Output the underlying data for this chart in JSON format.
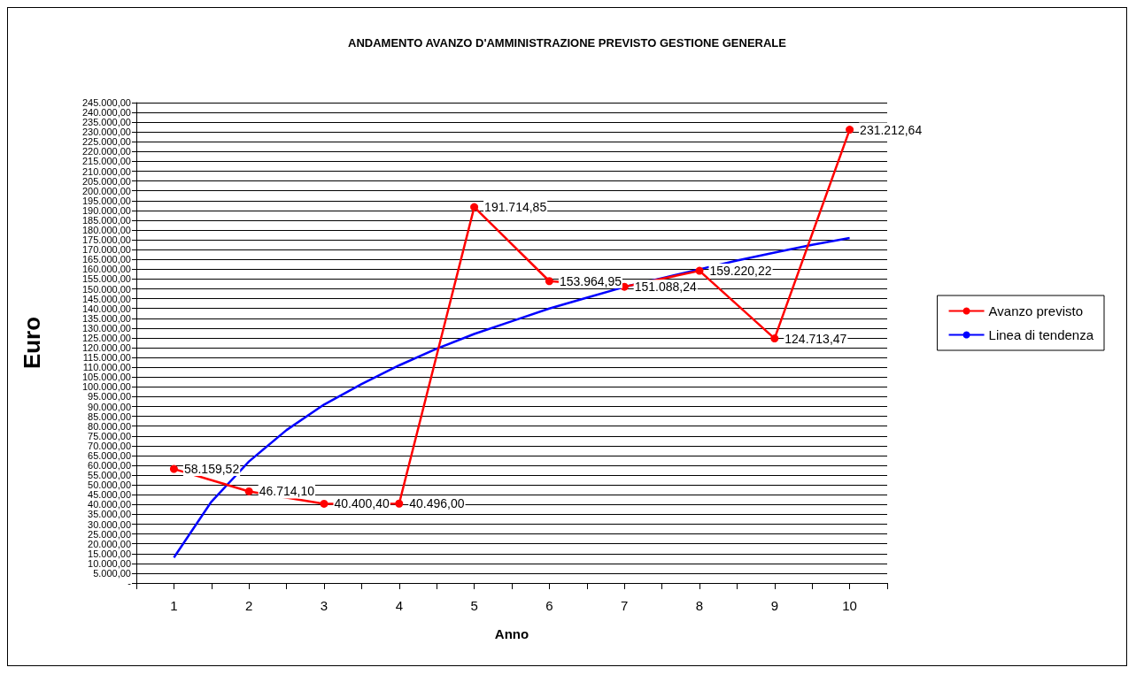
{
  "chart_data": {
    "type": "line",
    "title": "ANDAMENTO AVANZO D'AMMINISTRAZIONE PREVISTO GESTIONE GENERALE",
    "xlabel": "Anno",
    "ylabel": "Euro",
    "x": [
      1,
      2,
      3,
      4,
      5,
      6,
      7,
      8,
      9,
      10
    ],
    "xlim": [
      0.5,
      10.5
    ],
    "xticks": [
      {
        "value": 0.5,
        "label": null
      },
      1,
      {
        "value": 1.5,
        "label": null
      },
      2,
      {
        "value": 2.5,
        "label": null
      },
      3,
      {
        "value": 3.5,
        "label": null
      },
      4,
      {
        "value": 4.5,
        "label": null
      },
      5,
      {
        "value": 5.5,
        "label": null
      },
      6,
      {
        "value": 6.5,
        "label": null
      },
      7,
      {
        "value": 7.5,
        "label": null
      },
      8,
      {
        "value": 8.5,
        "label": null
      },
      9,
      {
        "value": 9.5,
        "label": null
      },
      10,
      {
        "value": 10.5,
        "label": null
      }
    ],
    "ylim": [
      0,
      245000
    ],
    "yticks": [
      {
        "value": 0,
        "label": "-"
      },
      {
        "value": 5000,
        "label": "5.000,00"
      },
      {
        "value": 10000,
        "label": "10.000,00"
      },
      {
        "value": 15000,
        "label": "15.000,00"
      },
      {
        "value": 20000,
        "label": "20.000,00"
      },
      {
        "value": 25000,
        "label": "25.000,00"
      },
      {
        "value": 30000,
        "label": "30.000,00"
      },
      {
        "value": 35000,
        "label": "35.000,00"
      },
      {
        "value": 40000,
        "label": "40.000,00"
      },
      {
        "value": 45000,
        "label": "45.000,00"
      },
      {
        "value": 50000,
        "label": "50.000,00"
      },
      {
        "value": 55000,
        "label": "55.000,00"
      },
      {
        "value": 60000,
        "label": "60.000,00"
      },
      {
        "value": 65000,
        "label": "65.000,00"
      },
      {
        "value": 70000,
        "label": "70.000,00"
      },
      {
        "value": 75000,
        "label": "75.000,00"
      },
      {
        "value": 80000,
        "label": "80.000,00"
      },
      {
        "value": 85000,
        "label": "85.000,00"
      },
      {
        "value": 90000,
        "label": "90.000,00"
      },
      {
        "value": 95000,
        "label": "95.000,00"
      },
      {
        "value": 100000,
        "label": "100.000,00"
      },
      {
        "value": 105000,
        "label": "105.000,00"
      },
      {
        "value": 110000,
        "label": "110.000,00"
      },
      {
        "value": 115000,
        "label": "115.000,00"
      },
      {
        "value": 120000,
        "label": "120.000,00"
      },
      {
        "value": 125000,
        "label": "125.000,00"
      },
      {
        "value": 130000,
        "label": "130.000,00"
      },
      {
        "value": 135000,
        "label": "135.000,00"
      },
      {
        "value": 140000,
        "label": "140.000,00"
      },
      {
        "value": 145000,
        "label": "145.000,00"
      },
      {
        "value": 150000,
        "label": "150.000,00"
      },
      {
        "value": 155000,
        "label": "155.000,00"
      },
      {
        "value": 160000,
        "label": "160.000,00"
      },
      {
        "value": 165000,
        "label": "165.000,00"
      },
      {
        "value": 170000,
        "label": "170.000,00"
      },
      {
        "value": 175000,
        "label": "175.000,00"
      },
      {
        "value": 180000,
        "label": "180.000,00"
      },
      {
        "value": 185000,
        "label": "185.000,00"
      },
      {
        "value": 190000,
        "label": "190.000,00"
      },
      {
        "value": 195000,
        "label": "195.000,00"
      },
      {
        "value": 200000,
        "label": "200.000,00"
      },
      {
        "value": 205000,
        "label": "205.000,00"
      },
      {
        "value": 210000,
        "label": "210.000,00"
      },
      {
        "value": 215000,
        "label": "215.000,00"
      },
      {
        "value": 220000,
        "label": "220.000,00"
      },
      {
        "value": 225000,
        "label": "225.000,00"
      },
      {
        "value": 230000,
        "label": "230.000,00"
      },
      {
        "value": 235000,
        "label": "235.000,00"
      },
      {
        "value": 240000,
        "label": "240.000,00"
      },
      {
        "value": 245000,
        "label": "245.000,00"
      }
    ],
    "grid": "y",
    "legend": "right",
    "series": [
      {
        "name": "Avanzo previsto",
        "color": "#ff0000",
        "marker": "circle",
        "values": [
          58159.52,
          46714.1,
          40400.4,
          40496.0,
          191714.85,
          153964.95,
          151088.24,
          159220.22,
          124713.47,
          231212.64
        ],
        "value_labels": [
          "58.159,52",
          "46.714,10",
          "40.400,40",
          "40.496,00",
          "191.714,85",
          "153.964,95",
          "151.088,24",
          "159.220,22",
          "124.713,47",
          "231.212,64"
        ]
      },
      {
        "name": "Linea di tendenza",
        "color": "#0000ff",
        "marker": "none",
        "x": [
          1,
          1.5,
          2,
          2.5,
          3,
          3.5,
          4,
          4.5,
          5,
          5.5,
          6,
          6.5,
          7,
          7.5,
          8,
          8.5,
          9,
          9.5,
          10
        ],
        "values": [
          13000,
          41500,
          62000,
          78000,
          91000,
          101500,
          111000,
          119500,
          127000,
          133500,
          140000,
          145500,
          151000,
          155500,
          160000,
          164500,
          168500,
          172500,
          176000
        ]
      }
    ]
  }
}
